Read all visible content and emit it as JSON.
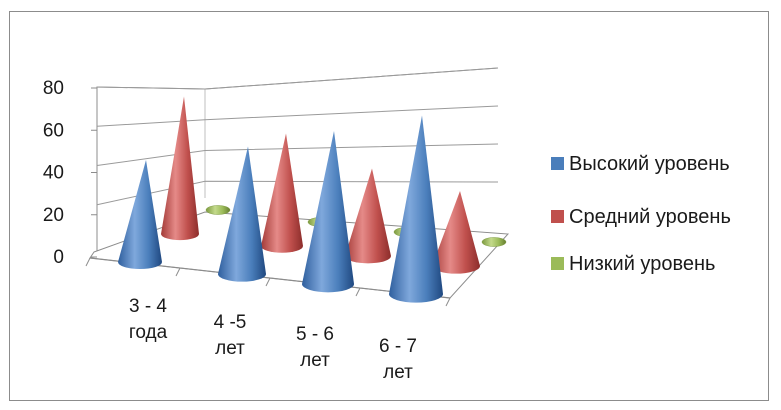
{
  "chart_data": {
    "type": "bar",
    "subtype": "3d-cone",
    "categories": [
      [
        "3 - 4",
        "года"
      ],
      [
        "4 -5",
        "лет"
      ],
      [
        "5 - 6",
        "лет"
      ],
      [
        "6 - 7",
        "лет"
      ]
    ],
    "series": [
      {
        "name": "Высокий уровень",
        "color": "#4a7ebb",
        "values": [
          40,
          50,
          60,
          70
        ]
      },
      {
        "name": "Средний уровень",
        "color": "#c0504d",
        "values": [
          55,
          45,
          35,
          30
        ]
      },
      {
        "name": "Низкий уровень",
        "color": "#9bbb59",
        "values": [
          5,
          5,
          5,
          5
        ]
      }
    ],
    "yticks": [
      0,
      20,
      40,
      60,
      80
    ],
    "ylim": [
      0,
      80
    ],
    "grid": true,
    "legend_position": "right",
    "title": "",
    "xlabel": "",
    "ylabel": ""
  }
}
